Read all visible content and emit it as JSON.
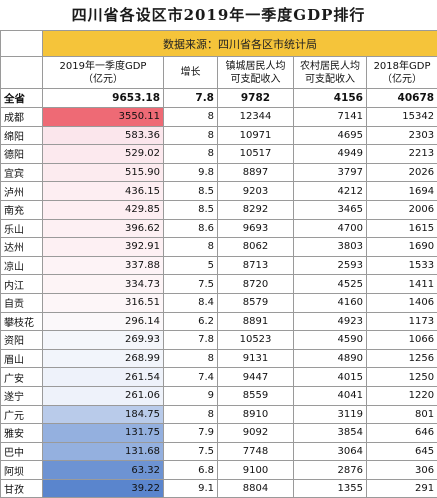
{
  "title": "四川省各设区市2019年一季度GDP排行",
  "source": "数据来源：四川省各区市统计局",
  "headers": [
    "2019年一季度GDP\n（亿元）",
    "增长",
    "镇城居民人均\n可支配收入",
    "农村居民人均\n可支配收入",
    "2018年GDP\n（亿元）"
  ],
  "total": {
    "name": "全省",
    "gdp": "9653.18",
    "growth": "7.8",
    "urban": "9782",
    "rural": "4156",
    "gdp2018": "40678"
  },
  "rows": [
    {
      "name": "成都",
      "gdp": "3550.11",
      "growth": "8",
      "urban": "12344",
      "rural": "7141",
      "gdp2018": "15342",
      "color": "#ee6a75"
    },
    {
      "name": "绵阳",
      "gdp": "583.36",
      "growth": "8",
      "urban": "10971",
      "rural": "4695",
      "gdp2018": "2303",
      "color": "#fbe6ec"
    },
    {
      "name": "德阳",
      "gdp": "529.02",
      "growth": "8",
      "urban": "10517",
      "rural": "4949",
      "gdp2018": "2213",
      "color": "#fce9ee"
    },
    {
      "name": "宜宾",
      "gdp": "515.90",
      "growth": "9.8",
      "urban": "8897",
      "rural": "3797",
      "gdp2018": "2026",
      "color": "#fcebef"
    },
    {
      "name": "泸州",
      "gdp": "436.15",
      "growth": "8.5",
      "urban": "9203",
      "rural": "4212",
      "gdp2018": "1694",
      "color": "#fdeef2"
    },
    {
      "name": "南充",
      "gdp": "429.85",
      "growth": "8.5",
      "urban": "8292",
      "rural": "3465",
      "gdp2018": "2006",
      "color": "#fdeef2"
    },
    {
      "name": "乐山",
      "gdp": "396.62",
      "growth": "8.6",
      "urban": "9693",
      "rural": "4700",
      "gdp2018": "1615",
      "color": "#fdf0f3"
    },
    {
      "name": "达州",
      "gdp": "392.91",
      "growth": "8",
      "urban": "8062",
      "rural": "3803",
      "gdp2018": "1690",
      "color": "#fdf0f3"
    },
    {
      "name": "凉山",
      "gdp": "337.88",
      "growth": "5",
      "urban": "8713",
      "rural": "2593",
      "gdp2018": "1533",
      "color": "#fdf3f6"
    },
    {
      "name": "内江",
      "gdp": "334.73",
      "growth": "7.5",
      "urban": "8720",
      "rural": "4525",
      "gdp2018": "1411",
      "color": "#fdf4f6"
    },
    {
      "name": "自贡",
      "gdp": "316.51",
      "growth": "8.4",
      "urban": "8579",
      "rural": "4160",
      "gdp2018": "1406",
      "color": "#fdf6f8"
    },
    {
      "name": "攀枝花",
      "gdp": "296.14",
      "growth": "6.2",
      "urban": "8891",
      "rural": "4923",
      "gdp2018": "1173",
      "color": "#fbf8fa"
    },
    {
      "name": "资阳",
      "gdp": "269.93",
      "growth": "7.8",
      "urban": "10523",
      "rural": "4590",
      "gdp2018": "1066",
      "color": "#f4f6fb"
    },
    {
      "name": "眉山",
      "gdp": "268.99",
      "growth": "8",
      "urban": "9131",
      "rural": "4890",
      "gdp2018": "1256",
      "color": "#f2f5fb"
    },
    {
      "name": "广安",
      "gdp": "261.54",
      "growth": "7.4",
      "urban": "9447",
      "rural": "4015",
      "gdp2018": "1250",
      "color": "#eef2fa"
    },
    {
      "name": "遂宁",
      "gdp": "261.06",
      "growth": "9",
      "urban": "8559",
      "rural": "4041",
      "gdp2018": "1220",
      "color": "#eef2fa"
    },
    {
      "name": "广元",
      "gdp": "184.75",
      "growth": "8",
      "urban": "8910",
      "rural": "3119",
      "gdp2018": "801",
      "color": "#b9cbea"
    },
    {
      "name": "雅安",
      "gdp": "131.75",
      "growth": "7.9",
      "urban": "9092",
      "rural": "3854",
      "gdp2018": "646",
      "color": "#94b0df"
    },
    {
      "name": "巴中",
      "gdp": "131.68",
      "growth": "7.5",
      "urban": "7748",
      "rural": "3064",
      "gdp2018": "645",
      "color": "#94b0df"
    },
    {
      "name": "阿坝",
      "gdp": "63.32",
      "growth": "6.8",
      "urban": "9100",
      "rural": "2876",
      "gdp2018": "306",
      "color": "#6d93d3"
    },
    {
      "name": "甘孜",
      "gdp": "39.22",
      "growth": "9.1",
      "urban": "8804",
      "rural": "1355",
      "gdp2018": "291",
      "color": "#5a85cd"
    }
  ]
}
